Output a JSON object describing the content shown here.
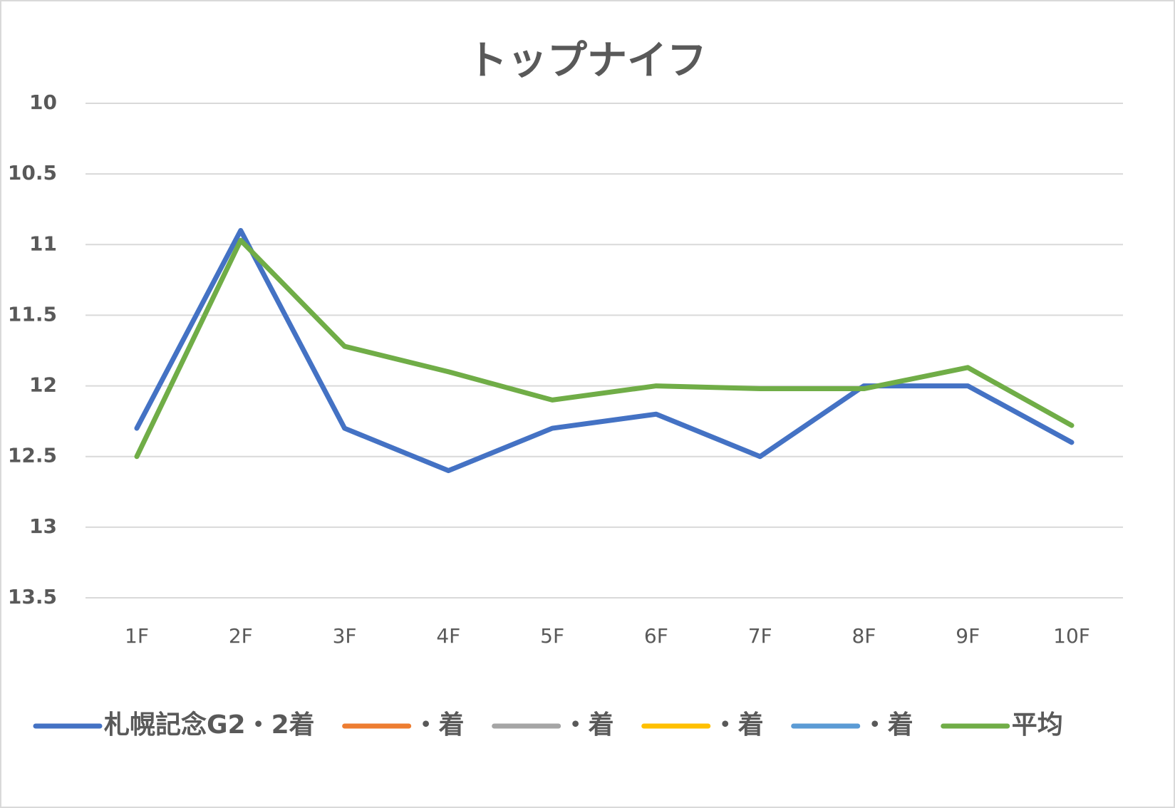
{
  "chart_data": {
    "type": "line",
    "title": "トップナイフ",
    "categories": [
      "1F",
      "2F",
      "3F",
      "4F",
      "5F",
      "6F",
      "7F",
      "8F",
      "9F",
      "10F"
    ],
    "series": [
      {
        "name": "札幌記念G2・2着",
        "color": "#4472c4",
        "values": [
          12.3,
          10.9,
          12.3,
          12.6,
          12.3,
          12.2,
          12.5,
          12.0,
          12.0,
          12.4
        ]
      },
      {
        "name": "・着",
        "color": "#ed7d31",
        "values": [
          null,
          null,
          null,
          null,
          null,
          null,
          null,
          null,
          null,
          null
        ]
      },
      {
        "name": "・着",
        "color": "#a5a5a5",
        "values": [
          null,
          null,
          null,
          null,
          null,
          null,
          null,
          null,
          null,
          null
        ]
      },
      {
        "name": "・着",
        "color": "#ffc000",
        "values": [
          null,
          null,
          null,
          null,
          null,
          null,
          null,
          null,
          null,
          null
        ]
      },
      {
        "name": "・着",
        "color": "#5b9bd5",
        "values": [
          null,
          null,
          null,
          null,
          null,
          null,
          null,
          null,
          null,
          null
        ]
      },
      {
        "name": "平均",
        "color": "#70ad47",
        "values": [
          12.5,
          10.97,
          11.72,
          11.9,
          12.1,
          12.0,
          12.02,
          12.02,
          11.87,
          12.28
        ]
      }
    ],
    "ylim": [
      10,
      13.5
    ],
    "yticks": [
      10,
      10.5,
      11,
      11.5,
      12,
      12.5,
      13,
      13.5
    ],
    "y_reversed": true,
    "grid": true,
    "legend": "bottom"
  }
}
